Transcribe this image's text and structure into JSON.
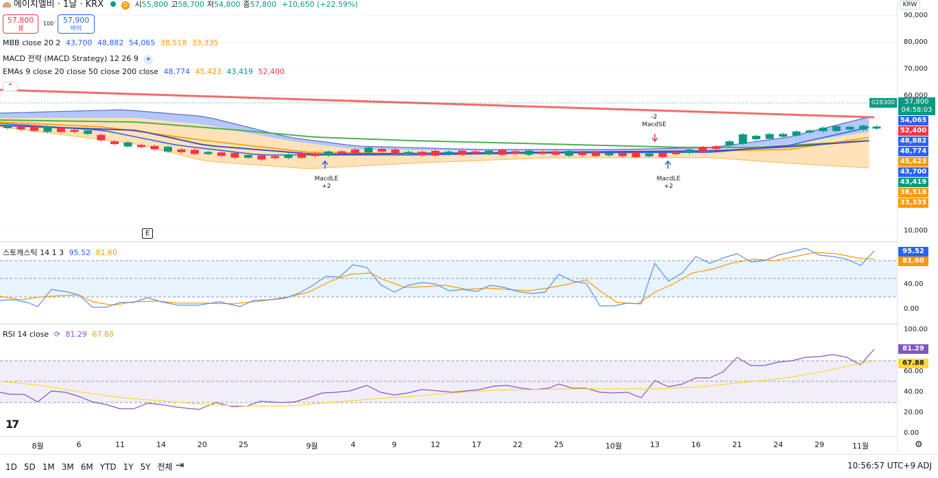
{
  "header": {
    "title": "에이치엘비 · 1날 · KRX",
    "interval_badge": "D",
    "ohlc": [
      {
        "k": "시",
        "v": "55,800"
      },
      {
        "k": "고",
        "v": "58,700"
      },
      {
        "k": "저",
        "v": "54,800"
      },
      {
        "k": "종",
        "v": "57,800"
      }
    ],
    "change": "+10,650 (+22.59%)",
    "currency": "KRW"
  },
  "trade": {
    "sell_price": "57,800",
    "sell_label": "셀",
    "spread": "100",
    "buy_price": "57,900",
    "buy_label": "바이"
  },
  "indicators": {
    "mbb": {
      "name": "MBB close 20 2",
      "v1": "43,700",
      "v2": "48,882",
      "v3": "54,065",
      "v4": "38,518",
      "v5": "33,335"
    },
    "macd": {
      "name": "MACD 전략 (MACD Strategy) 12 26 9"
    },
    "emas": {
      "name": "EMAs 9 close 20 close 50 close 200 close",
      "v1": "48,774",
      "v2": "45,423",
      "v3": "43,419",
      "v4": "52,400"
    }
  },
  "signals": {
    "le1_label": "MacdLE",
    "le1_qty": "+2",
    "se_qty": "-2",
    "se_label": "MacdSE",
    "le2_label": "MacdLE",
    "le2_qty": "+2"
  },
  "earnings_marker": "E",
  "price_scale": {
    "ticks": [
      "90,000",
      "80,000",
      "70,000",
      "60,000",
      "10,000"
    ],
    "last_price_code": "028300",
    "last_price": "57,800",
    "countdown": "04:58:03",
    "badges": [
      {
        "v": "54,065",
        "c": "#2962ff"
      },
      {
        "v": "52,400",
        "c": "#f23645"
      },
      {
        "v": "48,882",
        "c": "#2962ff"
      },
      {
        "v": "48,774",
        "c": "#2962ff"
      },
      {
        "v": "45,423",
        "c": "#ff9800"
      },
      {
        "v": "43,700",
        "c": "#2962ff"
      },
      {
        "v": "43,419",
        "c": "#089981"
      },
      {
        "v": "38,518",
        "c": "#ff9800"
      },
      {
        "v": "33,335",
        "c": "#ff9800"
      }
    ]
  },
  "stoch": {
    "name": "스토캐스틱 14 1 3",
    "k": "95.52",
    "d": "81.60",
    "ticks": [
      "40.00",
      "0.00"
    ],
    "k_color": "#2962ff",
    "d_color": "#ff9800"
  },
  "rsi": {
    "name": "RSI 14 close",
    "v": "81.29",
    "ma": "67.88",
    "ticks": [
      "100.00",
      "60.00",
      "40.00",
      "20.00",
      "0.00"
    ],
    "color": "#7e57c2",
    "ma_color": "#fdd835"
  },
  "time_axis": [
    "8월",
    "6",
    "11",
    "14",
    "20",
    "25",
    "9월",
    "4",
    "9",
    "12",
    "17",
    "22",
    "25",
    "10월",
    "13",
    "16",
    "21",
    "24",
    "29",
    "11월"
  ],
  "bottom_bar": {
    "ranges": [
      "1D",
      "5D",
      "1M",
      "3M",
      "6M",
      "YTD",
      "1Y",
      "5Y",
      "전체"
    ],
    "clock": "10:56:57 UTC+9",
    "adj": "ADJ"
  }
}
